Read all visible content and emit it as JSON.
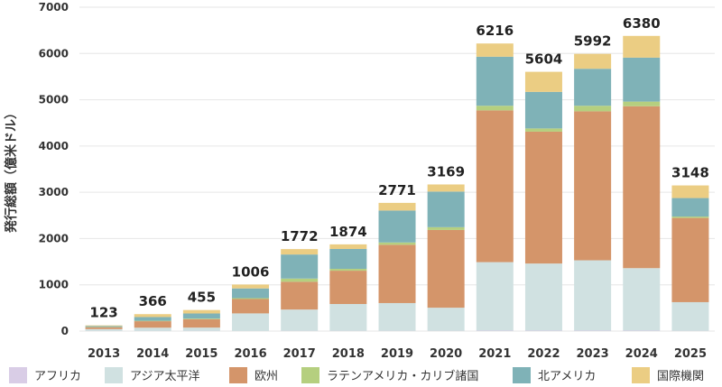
{
  "chart_data": {
    "type": "bar",
    "stacked": true,
    "title": "",
    "xlabel": "",
    "ylabel": "発行総額（億米ドル）",
    "ylim": [
      0,
      7000
    ],
    "yticks": [
      0,
      1000,
      2000,
      3000,
      4000,
      5000,
      6000,
      7000
    ],
    "categories": [
      "2013",
      "2014",
      "2015",
      "2016",
      "2017",
      "2018",
      "2019",
      "2020",
      "2021",
      "2022",
      "2023",
      "2024",
      "2025"
    ],
    "series": [
      {
        "name": "アフリカ",
        "color": "#d9cde6",
        "values": [
          3,
          3,
          5,
          2,
          5,
          5,
          5,
          5,
          10,
          10,
          10,
          10,
          5
        ]
      },
      {
        "name": "アジア太平洋",
        "color": "#d0e1e1",
        "values": [
          40,
          70,
          70,
          380,
          460,
          580,
          600,
          500,
          1480,
          1450,
          1520,
          1350,
          620
        ]
      },
      {
        "name": "欧州",
        "color": "#d4956a",
        "values": [
          40,
          140,
          180,
          310,
          600,
          720,
          1260,
          1680,
          3280,
          2850,
          3220,
          3500,
          1820
        ]
      },
      {
        "name": "ラテンアメリカ・カリブ諸国",
        "color": "#b5cf7f",
        "values": [
          5,
          10,
          15,
          20,
          70,
          40,
          50,
          60,
          100,
          70,
          120,
          100,
          30
        ]
      },
      {
        "name": "北アメリカ",
        "color": "#7fb2b7",
        "values": [
          20,
          80,
          110,
          210,
          520,
          430,
          690,
          770,
          1060,
          790,
          800,
          950,
          400
        ]
      },
      {
        "name": "国際機関",
        "color": "#ebcd83",
        "values": [
          15,
          63,
          75,
          84,
          117,
          99,
          166,
          154,
          286,
          434,
          322,
          470,
          273
        ]
      }
    ],
    "totals": [
      123,
      366,
      455,
      1006,
      1772,
      1874,
      2771,
      3169,
      6216,
      5604,
      5992,
      6380,
      3148
    ],
    "legend_position": "bottom"
  }
}
